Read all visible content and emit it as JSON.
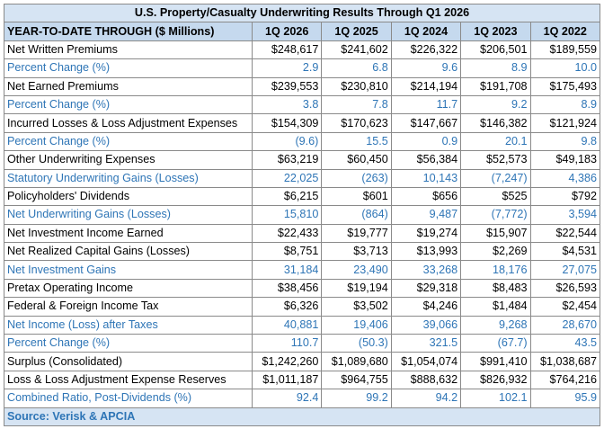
{
  "title": "U.S. Property/Casualty Underwriting Results Through Q1 2026",
  "header": [
    "YEAR-TO-DATE THROUGH ($ Millions)",
    "1Q 2026",
    "1Q 2025",
    "1Q 2024",
    "1Q 2023",
    "1Q 2022"
  ],
  "rows": [
    {
      "label": "Net Written Premiums",
      "values": [
        "$248,617",
        "$241,602",
        "$226,322",
        "$206,501",
        "$189,559"
      ],
      "color": "#000000"
    },
    {
      "label": "Percent Change (%)",
      "values": [
        "2.9",
        "6.8",
        "9.6",
        "8.9",
        "10.0"
      ],
      "color": "#2e75b6"
    },
    {
      "label": "Net Earned Premiums",
      "values": [
        "$239,553",
        "$230,810",
        "$214,194",
        "$191,708",
        "$175,493"
      ],
      "color": "#000000"
    },
    {
      "label": "Percent Change (%)",
      "values": [
        "3.8",
        "7.8",
        "11.7",
        "9.2",
        "8.9"
      ],
      "color": "#2e75b6"
    },
    {
      "label": "Incurred Losses & Loss Adjustment Expenses",
      "values": [
        "$154,309",
        "$170,623",
        "$147,667",
        "$146,382",
        "$121,924"
      ],
      "color": "#000000"
    },
    {
      "label": "Percent Change (%)",
      "values": [
        "(9.6)",
        "15.5",
        "0.9",
        "20.1",
        "9.8"
      ],
      "color": "#2e75b6"
    },
    {
      "label": "Other Underwriting Expenses",
      "values": [
        "$63,219",
        "$60,450",
        "$56,384",
        "$52,573",
        "$49,183"
      ],
      "color": "#000000"
    },
    {
      "label": "Statutory Underwriting Gains (Losses)",
      "values": [
        "22,025",
        "(263)",
        "10,143",
        "(7,247)",
        "4,386"
      ],
      "color": "#2e75b6"
    },
    {
      "label": "Policyholders' Dividends",
      "values": [
        "$6,215",
        "$601",
        "$656",
        "$525",
        "$792"
      ],
      "color": "#000000"
    },
    {
      "label": "Net Underwriting Gains (Losses)",
      "values": [
        "15,810",
        "(864)",
        "9,487",
        "(7,772)",
        "3,594"
      ],
      "color": "#2e75b6"
    },
    {
      "label": "Net Investment Income Earned",
      "values": [
        "$22,433",
        "$19,777",
        "$19,274",
        "$15,907",
        "$22,544"
      ],
      "color": "#000000"
    },
    {
      "label": "Net Realized Capital Gains (Losses)",
      "values": [
        "$8,751",
        "$3,713",
        "$13,993",
        "$2,269",
        "$4,531"
      ],
      "color": "#000000"
    },
    {
      "label": "Net Investment Gains",
      "values": [
        "31,184",
        "23,490",
        "33,268",
        "18,176",
        "27,075"
      ],
      "color": "#2e75b6"
    },
    {
      "label": "Pretax Operating Income",
      "values": [
        "$38,456",
        "$19,194",
        "$29,318",
        "$8,483",
        "$26,593"
      ],
      "color": "#000000"
    },
    {
      "label": "Federal & Foreign Income Tax",
      "values": [
        "$6,326",
        "$3,502",
        "$4,246",
        "$1,484",
        "$2,454"
      ],
      "color": "#000000"
    },
    {
      "label": "Net Income (Loss) after Taxes",
      "values": [
        "40,881",
        "19,406",
        "39,066",
        "9,268",
        "28,670"
      ],
      "color": "#2e75b6"
    },
    {
      "label": "Percent Change (%)",
      "values": [
        "110.7",
        "(50.3)",
        "321.5",
        "(67.7)",
        "43.5"
      ],
      "color": "#2e75b6"
    },
    {
      "label": "Surplus (Consolidated)",
      "values": [
        "$1,242,260",
        "$1,089,680",
        "$1,054,074",
        "$991,410",
        "$1,038,687"
      ],
      "color": "#000000"
    },
    {
      "label": "Loss & Loss Adjustment Expense Reserves",
      "values": [
        "$1,011,187",
        "$964,755",
        "$888,632",
        "$826,932",
        "$764,216"
      ],
      "color": "#000000"
    },
    {
      "label": "Combined Ratio, Post-Dividends (%)",
      "values": [
        "92.4",
        "99.2",
        "94.2",
        "102.1",
        "95.9"
      ],
      "color": "#2e75b6"
    }
  ],
  "source": "Source: Verisk & APCIA"
}
